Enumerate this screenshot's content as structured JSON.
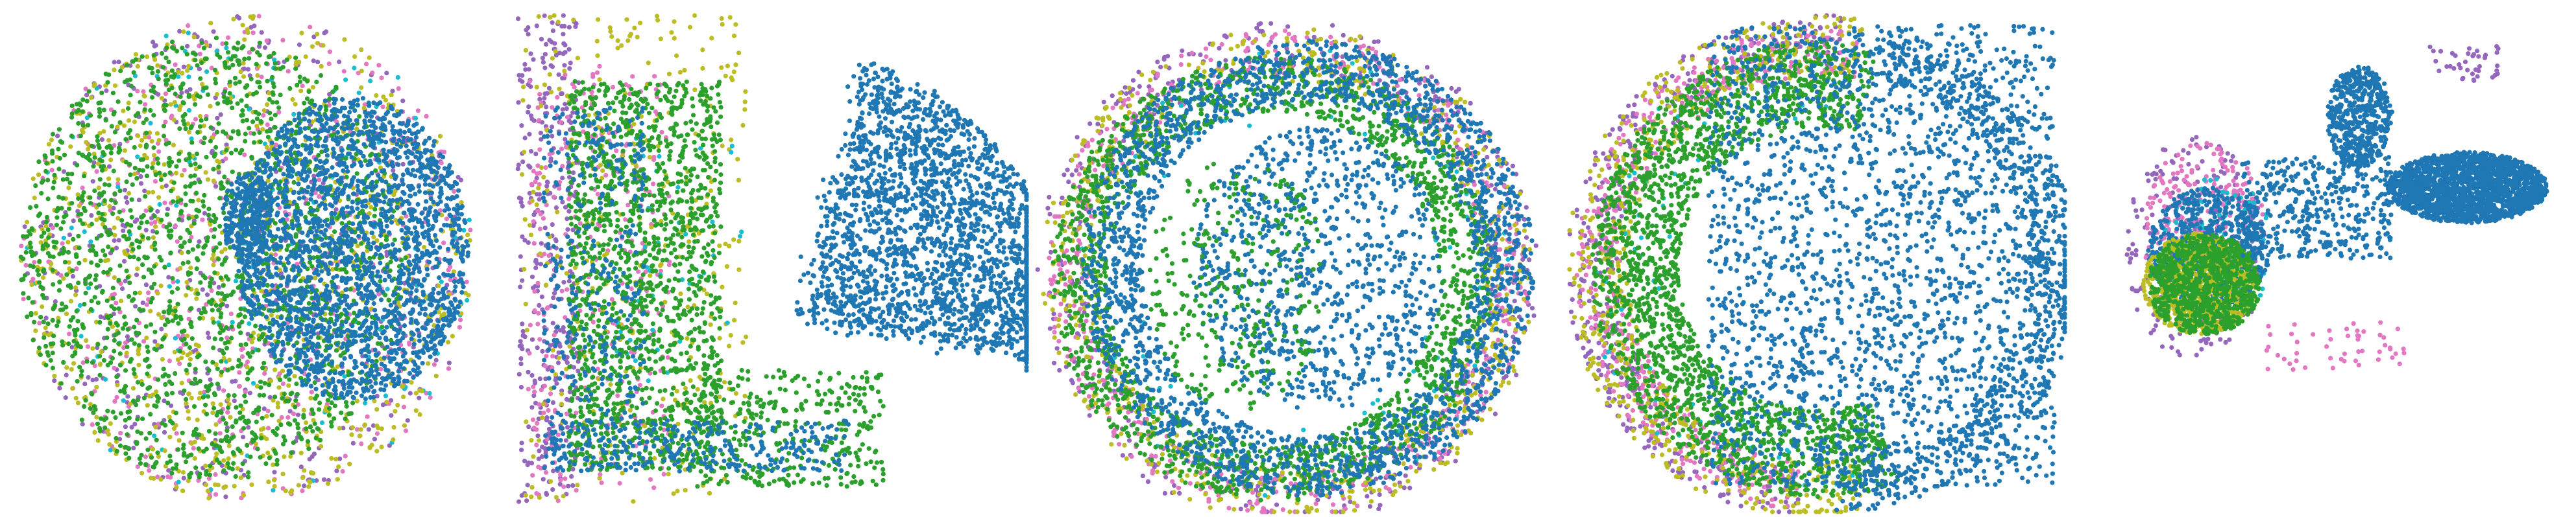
{
  "palette": {
    "blue": "#1f77b4",
    "green": "#2ca02c",
    "olive": "#bcbd22",
    "purple": "#9467bd",
    "pink": "#e377c2",
    "cyan": "#17becf"
  },
  "chart_data": [
    {
      "type": "scatter",
      "title": "",
      "axes_visible": false,
      "grid": false,
      "legend": "none",
      "description_shape": "filled disk; blue cluster occupying right half with hollow gaps near center-left, mixed green/olive/pink/purple points filling left half and outer ring",
      "layers": [
        {
          "color": "purple",
          "shape": "disk",
          "cx": 0.5,
          "cy": 0.5,
          "rx": 0.47,
          "ry": 0.48,
          "n": 500,
          "seed": 101
        },
        {
          "color": "pink",
          "shape": "disk",
          "cx": 0.5,
          "cy": 0.5,
          "rx": 0.47,
          "ry": 0.48,
          "n": 450,
          "seed": 102
        },
        {
          "color": "cyan",
          "shape": "disk",
          "cx": 0.5,
          "cy": 0.5,
          "rx": 0.47,
          "ry": 0.48,
          "n": 150,
          "seed": 103
        },
        {
          "color": "olive",
          "shape": "disk",
          "cx": 0.5,
          "cy": 0.5,
          "rx": 0.47,
          "ry": 0.48,
          "n": 850,
          "seed": 104
        },
        {
          "color": "green",
          "shape": "disk",
          "cx": 0.43,
          "cy": 0.5,
          "rx": 0.4,
          "ry": 0.44,
          "n": 1800,
          "seed": 105
        },
        {
          "color": "blue",
          "shape": "disk",
          "cx": 0.72,
          "cy": 0.48,
          "rx": 0.24,
          "ry": 0.3,
          "n": 2200,
          "seed": 106
        },
        {
          "color": "blue",
          "shape": "disk",
          "cx": 0.5,
          "cy": 0.42,
          "rx": 0.05,
          "ry": 0.09,
          "n": 250,
          "seed": 107
        }
      ]
    },
    {
      "type": "scatter",
      "title": "",
      "axes_visible": false,
      "grid": false,
      "legend": "none",
      "description_shape": "square tissue section; blue streaky fan on right, green band on left with mixed colors along left and bottom border",
      "layers": [
        {
          "color": "purple",
          "shape": "box",
          "x0": 0.0,
          "x1": 0.12,
          "y0": 0.02,
          "y1": 0.98,
          "n": 350,
          "seed": 201
        },
        {
          "color": "pink",
          "shape": "box",
          "x0": 0.02,
          "x1": 0.3,
          "y0": 0.12,
          "y1": 0.98,
          "n": 300,
          "seed": 202
        },
        {
          "color": "olive",
          "shape": "box",
          "x0": 0.0,
          "x1": 0.45,
          "y0": 0.02,
          "y1": 0.98,
          "n": 350,
          "seed": 203
        },
        {
          "color": "cyan",
          "shape": "box",
          "x0": 0.18,
          "x1": 0.45,
          "y0": 0.25,
          "y1": 0.75,
          "n": 40,
          "seed": 204
        },
        {
          "color": "green",
          "shape": "box",
          "x0": 0.1,
          "x1": 0.4,
          "y0": 0.15,
          "y1": 0.92,
          "n": 1500,
          "seed": 205
        },
        {
          "color": "green",
          "shape": "box",
          "x0": 0.35,
          "x1": 0.72,
          "y0": 0.72,
          "y1": 0.95,
          "n": 350,
          "seed": 206
        },
        {
          "color": "blue",
          "shape": "fan",
          "cx": 0.55,
          "cy": 0.62,
          "r": 0.52,
          "a0": -75,
          "a1": 10,
          "n": 2200,
          "seed": 207
        },
        {
          "color": "blue",
          "shape": "box",
          "x0": 0.05,
          "x1": 0.25,
          "y0": 0.2,
          "y1": 0.9,
          "n": 350,
          "seed": 208
        },
        {
          "color": "blue",
          "shape": "box",
          "x0": 0.05,
          "x1": 0.65,
          "y0": 0.82,
          "y1": 0.92,
          "n": 300,
          "seed": 209
        }
      ]
    },
    {
      "type": "scatter",
      "title": "",
      "axes_visible": false,
      "grid": false,
      "legend": "none",
      "description_shape": "concentric rings; outer mixed pink/purple/olive ring, green ring inside, blue ring, sparse blue and green interior",
      "layers": [
        {
          "color": "purple",
          "shape": "ring",
          "cx": 0.5,
          "cy": 0.53,
          "r0": 0.4,
          "r1": 0.5,
          "n": 450,
          "seed": 301
        },
        {
          "color": "pink",
          "shape": "ring",
          "cx": 0.5,
          "cy": 0.53,
          "r0": 0.39,
          "r1": 0.48,
          "n": 550,
          "seed": 302
        },
        {
          "color": "olive",
          "shape": "ring",
          "cx": 0.5,
          "cy": 0.53,
          "r0": 0.38,
          "r1": 0.49,
          "n": 600,
          "seed": 303
        },
        {
          "color": "cyan",
          "shape": "ring",
          "cx": 0.5,
          "cy": 0.53,
          "r0": 0.3,
          "r1": 0.45,
          "n": 80,
          "seed": 304
        },
        {
          "color": "green",
          "shape": "ring",
          "cx": 0.47,
          "cy": 0.54,
          "r0": 0.33,
          "r1": 0.44,
          "n": 1800,
          "seed": 305
        },
        {
          "color": "blue",
          "shape": "ring",
          "cx": 0.54,
          "cy": 0.52,
          "r0": 0.33,
          "r1": 0.45,
          "n": 2100,
          "seed": 306
        },
        {
          "color": "blue",
          "shape": "disk",
          "cx": 0.56,
          "cy": 0.52,
          "rx": 0.25,
          "ry": 0.28,
          "n": 900,
          "seed": 307
        },
        {
          "color": "green",
          "shape": "disk",
          "cx": 0.4,
          "cy": 0.55,
          "rx": 0.18,
          "ry": 0.25,
          "n": 300,
          "seed": 308
        }
      ]
    },
    {
      "type": "scatter",
      "title": "",
      "axes_visible": false,
      "grid": false,
      "legend": "none",
      "description_shape": "partial ring open to the right; green arc on left and bottom with mixed colored border, blue branching network filling right and center",
      "layers": [
        {
          "color": "purple",
          "shape": "arc",
          "cx": 0.52,
          "cy": 0.52,
          "r0": 0.4,
          "r1": 0.5,
          "a0": 95,
          "a1": 275,
          "n": 450,
          "seed": 401
        },
        {
          "color": "pink",
          "shape": "arc",
          "cx": 0.52,
          "cy": 0.52,
          "r0": 0.38,
          "r1": 0.48,
          "a0": 95,
          "a1": 280,
          "n": 500,
          "seed": 402
        },
        {
          "color": "olive",
          "shape": "arc",
          "cx": 0.52,
          "cy": 0.52,
          "r0": 0.38,
          "r1": 0.5,
          "a0": 80,
          "a1": 280,
          "n": 550,
          "seed": 403
        },
        {
          "color": "cyan",
          "shape": "arc",
          "cx": 0.52,
          "cy": 0.52,
          "r0": 0.3,
          "r1": 0.46,
          "a0": 80,
          "a1": 280,
          "n": 60,
          "seed": 404
        },
        {
          "color": "green",
          "shape": "arc",
          "cx": 0.52,
          "cy": 0.52,
          "r0": 0.28,
          "r1": 0.45,
          "a0": 70,
          "a1": 285,
          "n": 2000,
          "seed": 405
        },
        {
          "color": "blue",
          "shape": "box",
          "x0": 0.3,
          "x1": 0.98,
          "y0": 0.04,
          "y1": 0.95,
          "n": 2200,
          "seed": 406
        },
        {
          "color": "blue",
          "shape": "arc",
          "cx": 0.55,
          "cy": 0.52,
          "r0": 0.38,
          "r1": 0.48,
          "a0": -80,
          "a1": 90,
          "n": 700,
          "seed": 407
        }
      ]
    },
    {
      "type": "scatter",
      "title": "",
      "axes_visible": false,
      "grid": false,
      "legend": "none",
      "description_shape": "dense mixed cluster at lower left; elongated dense blue cluster to the right; blue stream connecting upward",
      "layers": [
        {
          "color": "purple",
          "shape": "disk",
          "cx": 0.2,
          "cy": 0.48,
          "rx": 0.15,
          "ry": 0.22,
          "n": 250,
          "seed": 501
        },
        {
          "color": "pink",
          "shape": "disk",
          "cx": 0.22,
          "cy": 0.45,
          "rx": 0.13,
          "ry": 0.18,
          "n": 300,
          "seed": 502
        },
        {
          "color": "cyan",
          "shape": "disk",
          "cx": 0.25,
          "cy": 0.48,
          "rx": 0.12,
          "ry": 0.14,
          "n": 100,
          "seed": 503
        },
        {
          "color": "blue",
          "shape": "disk",
          "cx": 0.23,
          "cy": 0.48,
          "rx": 0.13,
          "ry": 0.12,
          "n": 600,
          "seed": 504
        },
        {
          "color": "olive",
          "shape": "disk",
          "cx": 0.21,
          "cy": 0.55,
          "rx": 0.12,
          "ry": 0.1,
          "n": 700,
          "seed": 505
        },
        {
          "color": "green",
          "shape": "disk",
          "cx": 0.22,
          "cy": 0.55,
          "rx": 0.12,
          "ry": 0.1,
          "n": 900,
          "seed": 506
        },
        {
          "color": "blue",
          "shape": "disk",
          "cx": 0.78,
          "cy": 0.36,
          "rx": 0.17,
          "ry": 0.07,
          "n": 1800,
          "seed": 507
        },
        {
          "color": "blue",
          "shape": "disk",
          "cx": 0.55,
          "cy": 0.22,
          "rx": 0.07,
          "ry": 0.1,
          "n": 500,
          "seed": 508
        },
        {
          "color": "blue",
          "shape": "box",
          "x0": 0.3,
          "x1": 0.62,
          "y0": 0.3,
          "y1": 0.5,
          "n": 400,
          "seed": 509
        },
        {
          "color": "pink",
          "shape": "box",
          "x0": 0.35,
          "x1": 0.65,
          "y0": 0.62,
          "y1": 0.72,
          "n": 50,
          "seed": 510
        },
        {
          "color": "purple",
          "shape": "box",
          "x0": 0.7,
          "x1": 0.85,
          "y0": 0.08,
          "y1": 0.15,
          "n": 40,
          "seed": 511
        }
      ]
    }
  ]
}
